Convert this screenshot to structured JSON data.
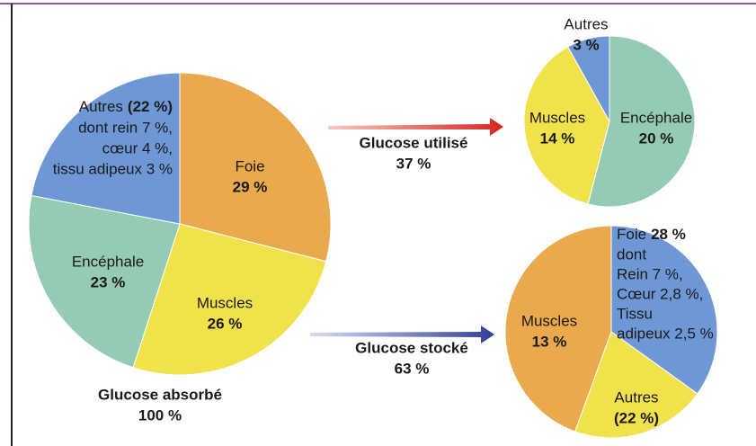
{
  "chart_data": [
    {
      "type": "pie",
      "title": "Glucose absorbé",
      "subtitle": "100 %",
      "categories": [
        "Foie",
        "Muscles",
        "Encéphale",
        "Autres"
      ],
      "values": [
        29,
        26,
        23,
        22
      ],
      "value_labels": [
        "29 %",
        "26 %",
        "23 %",
        "(22 %)"
      ],
      "colors": [
        "#e9a94c",
        "#f1e24c",
        "#94cbb3",
        "#6e97d6"
      ],
      "annotations": [
        "dont rein 7 %,",
        "cœur 4 %,",
        "tissu adipeux 3 %"
      ]
    },
    {
      "type": "pie",
      "title": "Glucose utilisé",
      "subtitle": "37 %",
      "categories": [
        "Encéphale",
        "Muscles",
        "Autres"
      ],
      "values": [
        20,
        14,
        3
      ],
      "value_labels": [
        "20 %",
        "14 %",
        "3 %"
      ],
      "colors": [
        "#94cbb3",
        "#f1e24c",
        "#6e97d6"
      ]
    },
    {
      "type": "pie",
      "title": "Glucose stocké",
      "subtitle": "63 %",
      "categories": [
        "Autres",
        "Muscles",
        "Foie"
      ],
      "values": [
        22,
        13,
        28
      ],
      "value_labels": [
        "(22 %)",
        "13 %",
        "28 %"
      ],
      "colors": [
        "#6e97d6",
        "#f1e24c",
        "#e9a94c"
      ],
      "annotations": [
        "dont",
        "Rein 7 %,",
        "Cœur 2,8 %,",
        "Tissu",
        "adipeux 2,5 %"
      ]
    }
  ]
}
